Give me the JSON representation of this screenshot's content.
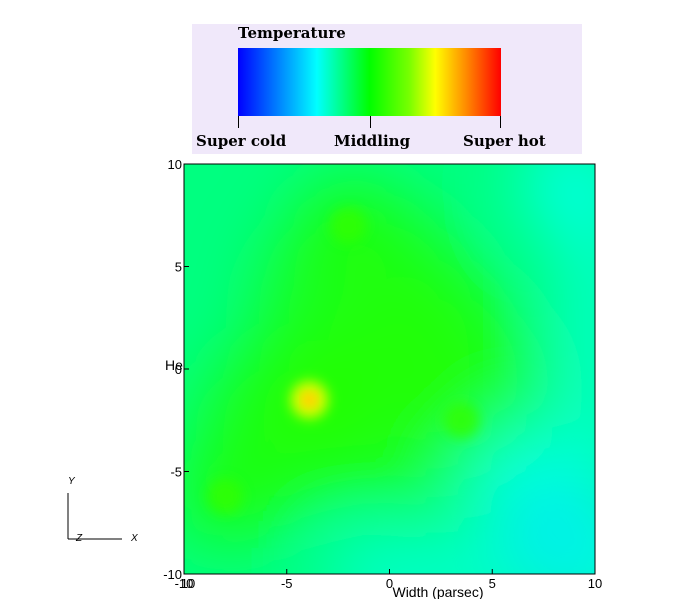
{
  "chart_data": {
    "type": "heatmap",
    "title": "",
    "colorbar": {
      "title": "Temperature",
      "labels": [
        "Super cold",
        "Middling",
        "Super hot"
      ]
    },
    "xlabel": "Width (parsec)",
    "ylabel": "He",
    "xlim": [
      -10,
      10
    ],
    "ylim": [
      -10,
      10
    ],
    "x_ticks": [
      "-10",
      "-5",
      "0",
      "5",
      "10"
    ],
    "x_ticks_overlap": [
      "10"
    ],
    "y_ticks": [
      "-10",
      "-5",
      "0",
      "5",
      "10"
    ],
    "hotspots": [
      {
        "x": -3.9,
        "y": -1.5,
        "level": "hot"
      },
      {
        "x": -2,
        "y": 7,
        "level": "warm"
      },
      {
        "x": 3.5,
        "y": -2.5,
        "level": "warm"
      },
      {
        "x": -8,
        "y": -6.2,
        "level": "warm"
      }
    ],
    "cold_regions": [
      {
        "x": 9,
        "y": -9,
        "level": "cold"
      },
      {
        "x": 6,
        "y": -5.2,
        "level": "cool"
      },
      {
        "x": 9,
        "y": 9,
        "level": "cool"
      }
    ],
    "colors": {
      "background": "#00ff80",
      "warm": "#22ff00",
      "hot": "#ffaa00",
      "cool": "#00ffe0",
      "cold": "#00aaff"
    },
    "triad": {
      "y": "Y",
      "z": "Z",
      "x": "X"
    }
  }
}
